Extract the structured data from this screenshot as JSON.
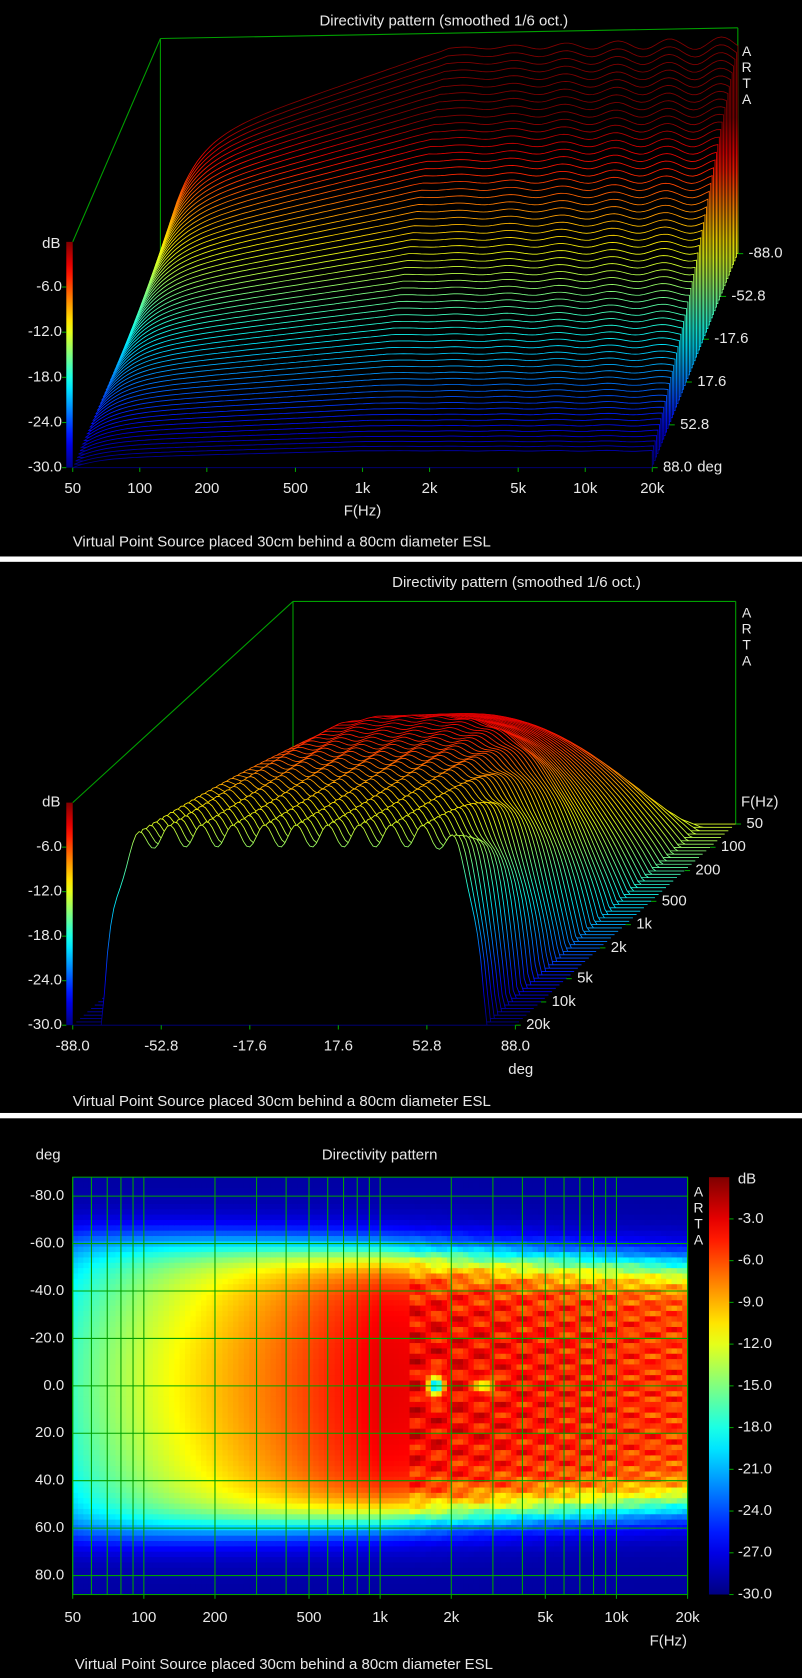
{
  "chart_data": [
    {
      "type": "waterfall",
      "title": "Directivity pattern (smoothed 1/6 oct.)",
      "brand": "ARTA",
      "xlabel": "F(Hz)",
      "ylabel": "dB",
      "zlabel": "deg",
      "note": "Virtual Point Source placed 30cm behind a 80cm diameter ESL",
      "xscale": "log",
      "xlim": [
        50,
        20000
      ],
      "xticks": [
        50,
        100,
        200,
        500,
        {
          "value": 1000,
          "label": "1k"
        },
        {
          "value": 2000,
          "label": "2k"
        },
        {
          "value": 5000,
          "label": "5k"
        },
        {
          "value": 10000,
          "label": "10k"
        },
        {
          "value": 20000,
          "label": "20k"
        }
      ],
      "ylim": [
        -30,
        0
      ],
      "yticks": [
        {
          "value": -6,
          "label": "-6.0"
        },
        {
          "value": -12,
          "label": "-12.0"
        },
        {
          "value": -18,
          "label": "-18.0"
        },
        {
          "value": -24,
          "label": "-24.0"
        },
        {
          "value": -30,
          "label": "-30.0"
        }
      ],
      "zlim": [
        88,
        -88
      ],
      "zticks": [
        {
          "value": -88,
          "label": "-88.0"
        },
        {
          "value": -52.8,
          "label": "-52.8"
        },
        {
          "value": -17.6,
          "label": "-17.6"
        },
        {
          "value": 17.6,
          "label": "17.6"
        },
        {
          "value": 52.8,
          "label": "52.8"
        },
        {
          "value": 88,
          "label": "88.0"
        }
      ]
    },
    {
      "type": "waterfall",
      "title": "Directivity pattern (smoothed 1/6 oct.)",
      "brand": "ARTA",
      "xlabel": "deg",
      "ylabel": "dB",
      "zlabel": "F(Hz)",
      "note": "Virtual Point Source placed 30cm behind a 80cm diameter ESL",
      "xlim": [
        -88,
        88
      ],
      "xticks": [
        {
          "value": -88,
          "label": "-88.0"
        },
        {
          "value": -52.8,
          "label": "-52.8"
        },
        {
          "value": -17.6,
          "label": "-17.6"
        },
        {
          "value": 17.6,
          "label": "17.6"
        },
        {
          "value": 52.8,
          "label": "52.8"
        },
        {
          "value": 88,
          "label": "88.0"
        }
      ],
      "ylim": [
        -30,
        0
      ],
      "yticks": [
        {
          "value": -6,
          "label": "-6.0"
        },
        {
          "value": -12,
          "label": "-12.0"
        },
        {
          "value": -18,
          "label": "-18.0"
        },
        {
          "value": -24,
          "label": "-24.0"
        },
        {
          "value": -30,
          "label": "-30.0"
        }
      ],
      "zscale": "log",
      "zlim": [
        20000,
        50
      ],
      "zticks": [
        50,
        100,
        200,
        500,
        {
          "value": 1000,
          "label": "1k"
        },
        {
          "value": 2000,
          "label": "2k"
        },
        {
          "value": 5000,
          "label": "5k"
        },
        {
          "value": 10000,
          "label": "10k"
        },
        {
          "value": 20000,
          "label": "20k"
        }
      ]
    },
    {
      "type": "heatmap",
      "title": "Directivity pattern",
      "brand": "ARTA",
      "xlabel": "F(Hz)",
      "ylabel": "deg",
      "clabel": "dB",
      "note": "Virtual Point Source placed 30cm behind a 80cm diameter ESL",
      "xscale": "log",
      "xlim": [
        50,
        20000
      ],
      "xticks": [
        50,
        100,
        200,
        500,
        {
          "value": 1000,
          "label": "1k"
        },
        {
          "value": 2000,
          "label": "2k"
        },
        {
          "value": 5000,
          "label": "5k"
        },
        {
          "value": 10000,
          "label": "10k"
        },
        {
          "value": 20000,
          "label": "20k"
        }
      ],
      "xgrid": [
        50,
        60,
        70,
        80,
        90,
        100,
        200,
        300,
        400,
        500,
        600,
        700,
        800,
        900,
        1000,
        2000,
        3000,
        4000,
        5000,
        6000,
        7000,
        8000,
        9000,
        10000,
        20000
      ],
      "ylim": [
        -88,
        88
      ],
      "yticks": [
        {
          "value": -80,
          "label": "-80.0"
        },
        {
          "value": -60,
          "label": "-60.0"
        },
        {
          "value": -40,
          "label": "-40.0"
        },
        {
          "value": -20,
          "label": "-20.0"
        },
        {
          "value": 0,
          "label": "0.0"
        },
        {
          "value": 20,
          "label": "20.0"
        },
        {
          "value": 40,
          "label": "40.0"
        },
        {
          "value": 60,
          "label": "60.0"
        },
        {
          "value": 80,
          "label": "80.0"
        }
      ],
      "clim": [
        -30,
        0
      ],
      "cticks": [
        {
          "value": -3,
          "label": "-3.0"
        },
        {
          "value": -6,
          "label": "-6.0"
        },
        {
          "value": -9,
          "label": "-9.0"
        },
        {
          "value": -12,
          "label": "-12.0"
        },
        {
          "value": -15,
          "label": "-15.0"
        },
        {
          "value": -18,
          "label": "-18.0"
        },
        {
          "value": -21,
          "label": "-21.0"
        },
        {
          "value": -24,
          "label": "-24.0"
        },
        {
          "value": -27,
          "label": "-27.0"
        },
        {
          "value": -30,
          "label": "-30.0"
        }
      ]
    }
  ]
}
